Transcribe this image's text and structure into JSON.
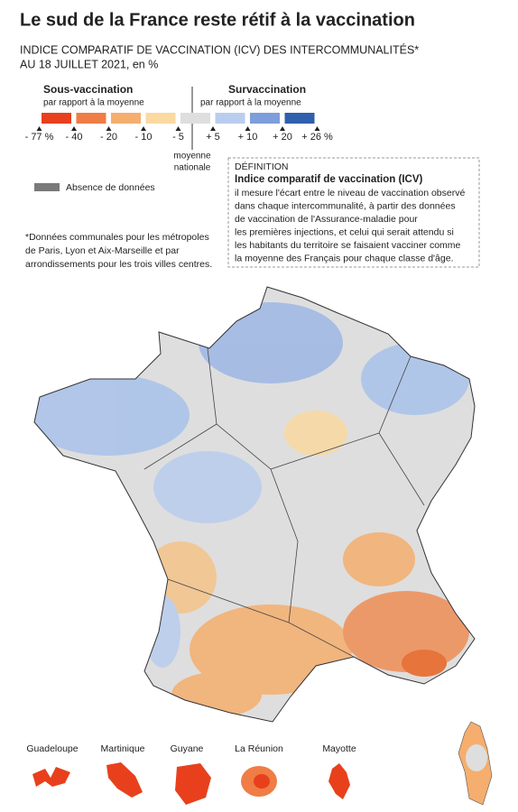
{
  "header": {
    "title": "Le sud de la France reste rétif à la vaccination",
    "subtitle": [
      "INDICE COMPARATIF DE VACCINATION (ICV) DES INTERCOMMUNALITÉS*",
      "AU 18 JUILLET 2021, en %"
    ]
  },
  "legend": {
    "under": {
      "label": "Sous-vaccination",
      "sublabel": "par rapport à la moyenne"
    },
    "over": {
      "label": "Survaccination",
      "sublabel": "par rapport à la moyenne"
    },
    "colors": [
      "#e8401c",
      "#ef7d45",
      "#f5ae6e",
      "#fbd9a0",
      "#dedede",
      "#b9cdee",
      "#7c9edb",
      "#2f5fad"
    ],
    "ticks": [
      "- 77 %",
      "- 40",
      "- 20",
      "- 10",
      "- 5",
      "+ 5",
      "+ 10",
      "+ 20",
      "+ 26 %"
    ],
    "average": [
      "moyenne",
      "nationale"
    ],
    "no_data": "Absence de données"
  },
  "definition": {
    "heading": "DÉFINITION",
    "title": "Indice comparatif de vaccination (ICV)",
    "lines": [
      "il mesure l'écart entre le niveau de vaccination observé",
      "dans chaque intercommunalité, à partir des données",
      "de vaccination de l'Assurance-maladie pour",
      "les premières injections, et celui qui serait attendu si",
      "les habitants du territoire se faisaient vacciner comme",
      "la moyenne des Français pour chaque classe d'âge."
    ]
  },
  "footnote": [
    "*Données communales pour les métropoles",
    "de Paris, Lyon et Aix-Marseille et par",
    "arrondissements pour les trois villes centres."
  ],
  "overseas": [
    "Guadeloupe",
    "Martinique",
    "Guyane",
    "La Réunion",
    "Mayotte"
  ]
}
